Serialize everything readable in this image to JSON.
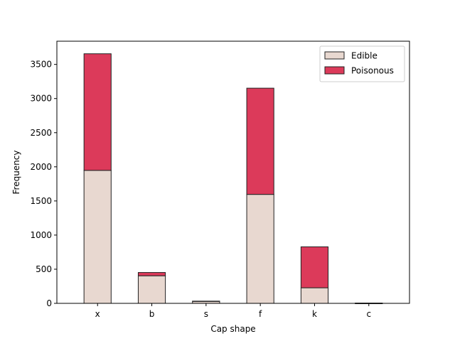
{
  "chart_data": {
    "type": "bar",
    "stacked": true,
    "categories": [
      "x",
      "b",
      "s",
      "f",
      "k",
      "c"
    ],
    "series": [
      {
        "name": "Edible",
        "values": [
          1948,
          404,
          32,
          1596,
          228,
          0
        ],
        "color": "#e8d8d0"
      },
      {
        "name": "Poisonous",
        "values": [
          1708,
          48,
          0,
          1556,
          600,
          4
        ],
        "color": "#dc3a5a"
      }
    ],
    "xlabel": "Cap shape",
    "ylabel": "Frequency",
    "ylim": [
      0,
      3840
    ],
    "yticks": [
      0,
      500,
      1000,
      1500,
      2000,
      2500,
      3000,
      3500
    ],
    "legend_position": "top-right",
    "grid": false,
    "edge_color": "#222222"
  }
}
